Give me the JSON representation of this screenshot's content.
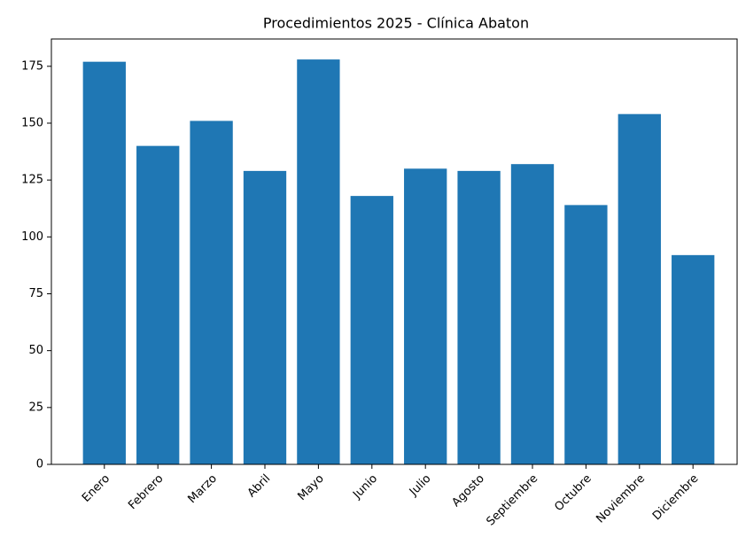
{
  "chart_data": {
    "type": "bar",
    "title": "Procedimientos 2025 - Clínica Abaton",
    "categories": [
      "Enero",
      "Febrero",
      "Marzo",
      "Abril",
      "Mayo",
      "Junio",
      "Julio",
      "Agosto",
      "Septiembre",
      "Octubre",
      "Noviembre",
      "Diciembre"
    ],
    "values": [
      177,
      140,
      151,
      129,
      178,
      118,
      130,
      129,
      132,
      114,
      154,
      92
    ],
    "color": "#1f77b4",
    "ylim": [
      0,
      187
    ],
    "yticks": [
      0,
      25,
      50,
      75,
      100,
      125,
      150,
      175
    ],
    "grid": false
  }
}
